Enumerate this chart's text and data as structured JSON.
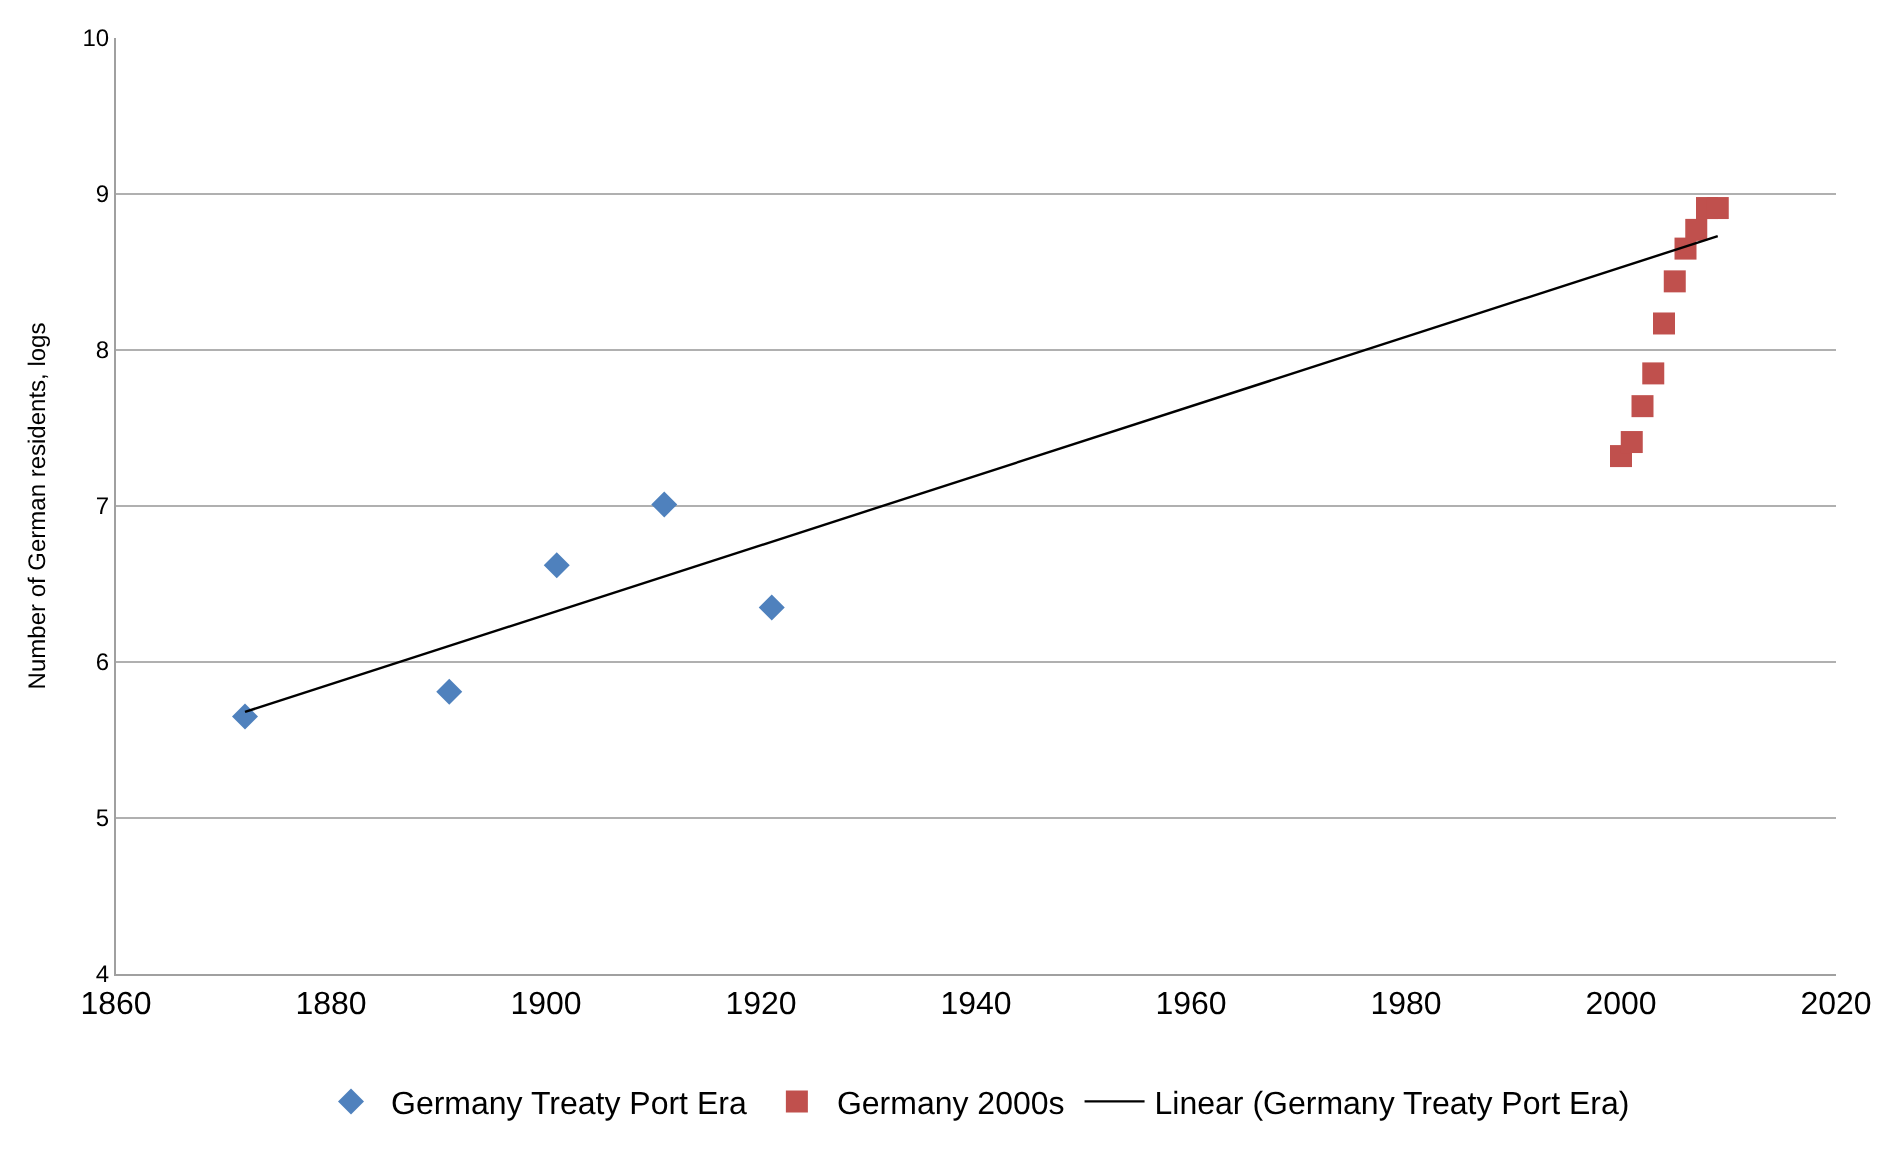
{
  "chart_data": {
    "type": "scatter",
    "ylabel": "Number of German residents, logs",
    "xlim": [
      1860,
      2020
    ],
    "xticks": [
      1860,
      1880,
      1900,
      1920,
      1940,
      1960,
      1980,
      2000,
      2020
    ],
    "ylim": [
      4,
      10
    ],
    "yticks": [
      4,
      5,
      6,
      7,
      8,
      9,
      10
    ],
    "grid": "y",
    "legend": "bottom",
    "series": [
      {
        "name": "Germany Treaty Port Era",
        "color": "#4f81bd",
        "marker": "diamond",
        "x": [
          1872,
          1891,
          1901,
          1911,
          1921
        ],
        "values": [
          5.65,
          5.81,
          6.62,
          7.01,
          6.35
        ]
      },
      {
        "name": "Germany 2000s",
        "color": "#c0504d",
        "marker": "square",
        "x": [
          2000,
          2001,
          2002,
          2003,
          2004,
          2005,
          2006,
          2007,
          2008,
          2009
        ],
        "values": [
          7.32,
          7.41,
          7.64,
          7.85,
          8.17,
          8.44,
          8.65,
          8.77,
          8.91,
          8.91
        ]
      },
      {
        "name": "Linear (Germany Treaty Port Era)",
        "type": "line",
        "color": "#000000",
        "line_style": "solid",
        "x": [
          1872,
          2009
        ],
        "values": [
          5.68,
          8.73
        ]
      }
    ]
  }
}
